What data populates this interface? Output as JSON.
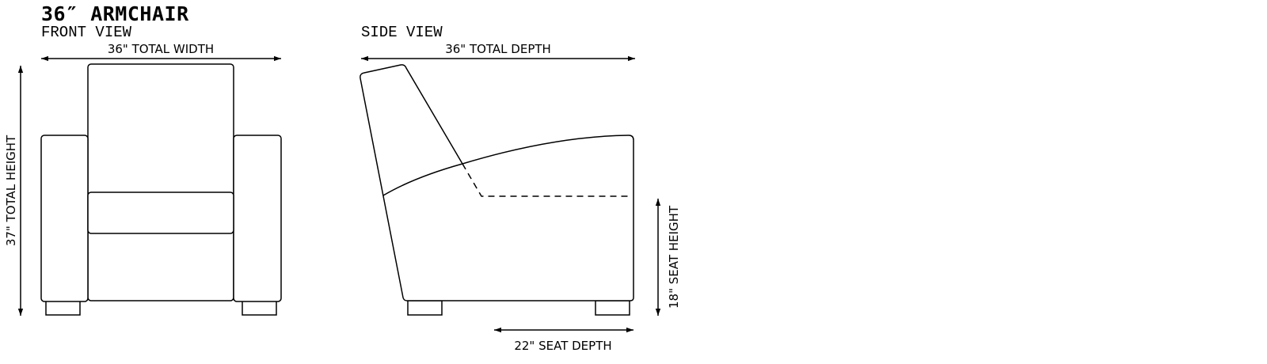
{
  "title": "36″ ARMCHAIR",
  "front_view": {
    "label": "FRONT VIEW",
    "width_dimension": "36\" TOTAL WIDTH",
    "height_dimension": "37\" TOTAL HEIGHT"
  },
  "side_view": {
    "label": "SIDE VIEW",
    "depth_dimension": "36\" TOTAL DEPTH",
    "seat_height_dimension": "18\" SEAT HEIGHT",
    "seat_depth_dimension": "22\" SEAT DEPTH"
  }
}
